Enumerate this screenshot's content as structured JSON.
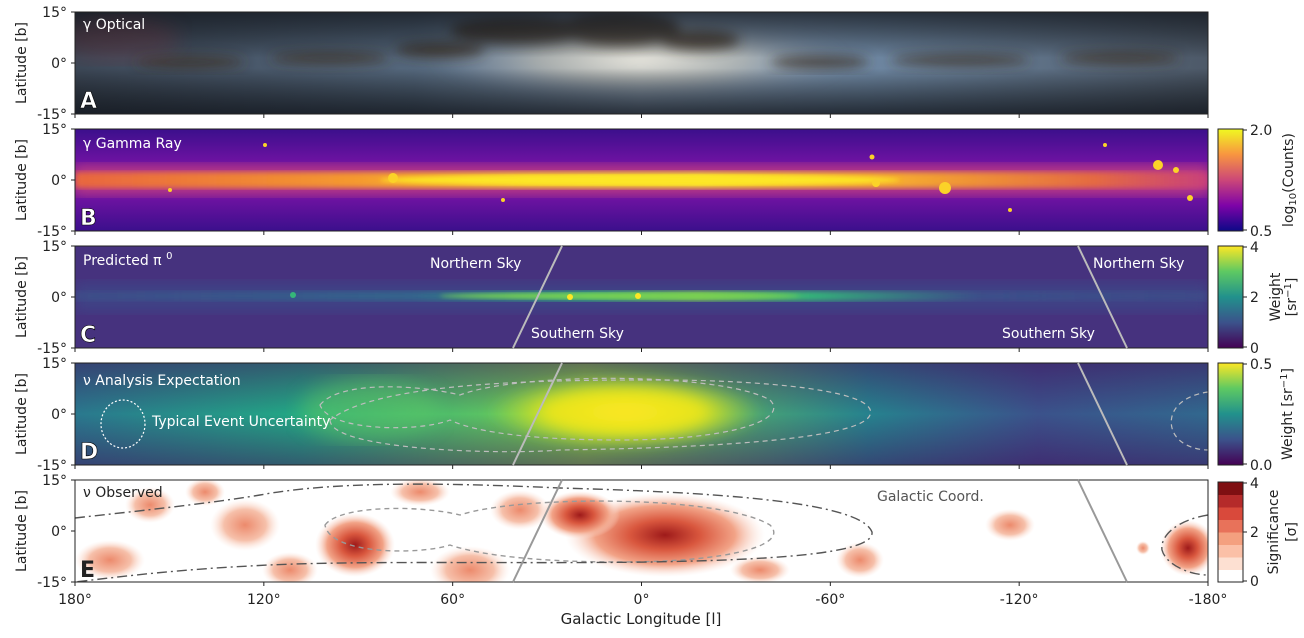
{
  "figure": {
    "xlabel": "Galactic Longitude [l]",
    "ylabel": "Latitude [b]",
    "x_ticks": [
      "180°",
      "120°",
      "60°",
      "0°",
      "-60°",
      "-120°",
      "-180°"
    ],
    "y_ticks": [
      "15°",
      "0°",
      "-15°"
    ]
  },
  "chart_data": [
    {
      "panel": "A",
      "type": "heatmap",
      "title": "γ Optical",
      "xlim": [
        180,
        -180
      ],
      "ylim": [
        -15,
        15
      ]
    },
    {
      "panel": "B",
      "type": "heatmap",
      "title": "γ Gamma Ray",
      "xlim": [
        180,
        -180
      ],
      "ylim": [
        -15,
        15
      ],
      "colorbar": {
        "label": "log10(Counts)",
        "ticks": [
          "2.0",
          "0.5"
        ],
        "range": [
          0.5,
          2.0
        ],
        "colormap": "plasma"
      }
    },
    {
      "panel": "C",
      "type": "heatmap",
      "title": "Predicted π0",
      "xlim": [
        180,
        -180
      ],
      "ylim": [
        -15,
        15
      ],
      "annotations": [
        "Northern Sky",
        "Southern Sky",
        "Northern Sky",
        "Southern Sky"
      ],
      "colorbar": {
        "label": "Weight",
        "unit": "[sr-1]",
        "ticks": [
          "4",
          "2",
          "0"
        ],
        "range": [
          0,
          4
        ],
        "colormap": "viridis"
      }
    },
    {
      "panel": "D",
      "type": "heatmap",
      "title": "ν Analysis Expectation",
      "xlim": [
        180,
        -180
      ],
      "ylim": [
        -15,
        15
      ],
      "annotations": [
        "Typical Event Uncertainty"
      ],
      "colorbar": {
        "label": "Weight [sr-1]",
        "ticks": [
          "0.5",
          "0.0"
        ],
        "range": [
          0.0,
          0.5
        ],
        "colormap": "viridis"
      }
    },
    {
      "panel": "E",
      "type": "heatmap",
      "title": "ν Observed",
      "xlim": [
        180,
        -180
      ],
      "ylim": [
        -15,
        15
      ],
      "annotations": [
        "Galactic Coord."
      ],
      "colorbar": {
        "label": "Significance",
        "unit": "[σ]",
        "ticks": [
          "4",
          "2",
          "0"
        ],
        "range": [
          0,
          4
        ],
        "colormap": "reds"
      }
    }
  ],
  "colors": {
    "gamma_ridge": "#fde725",
    "optical_dust": "#3a2f22",
    "observed_hot": "#9e1a1a",
    "sky_line": "#bbbbbb"
  }
}
